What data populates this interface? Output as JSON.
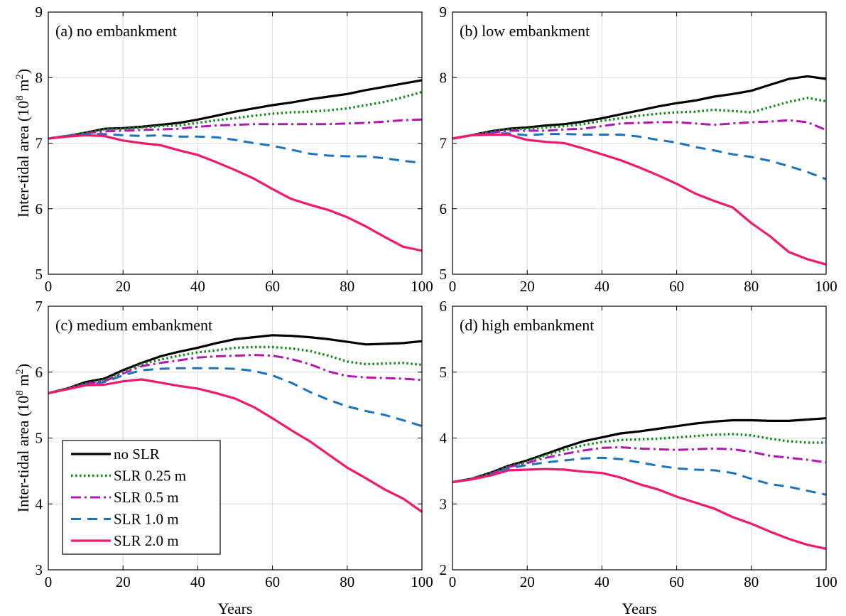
{
  "chart_data": [
    {
      "type": "line",
      "title": "(a)  no embankment",
      "xlabel": "",
      "ylabel": "Inter-tidal area (10^8 m^2)",
      "xlim": [
        0,
        100
      ],
      "ylim": [
        5,
        9
      ],
      "xticks": [
        "0",
        "20",
        "40",
        "60",
        "80",
        "100"
      ],
      "yticks": [
        "5",
        "6",
        "7",
        "8",
        "9"
      ],
      "grid": true,
      "series": [
        {
          "name": "no SLR",
          "x": [
            0,
            5,
            10,
            15,
            20,
            25,
            30,
            35,
            40,
            45,
            50,
            55,
            60,
            65,
            70,
            75,
            80,
            85,
            90,
            95,
            100
          ],
          "y": [
            7.07,
            7.11,
            7.16,
            7.22,
            7.23,
            7.25,
            7.28,
            7.31,
            7.36,
            7.42,
            7.48,
            7.53,
            7.58,
            7.62,
            7.67,
            7.71,
            7.75,
            7.81,
            7.86,
            7.91,
            7.96
          ]
        },
        {
          "name": "SLR 0.25 m",
          "x": [
            0,
            5,
            10,
            15,
            20,
            25,
            30,
            35,
            40,
            45,
            50,
            55,
            60,
            65,
            70,
            75,
            80,
            85,
            90,
            95,
            100
          ],
          "y": [
            7.07,
            7.11,
            7.16,
            7.21,
            7.22,
            7.24,
            7.26,
            7.27,
            7.31,
            7.35,
            7.38,
            7.42,
            7.45,
            7.47,
            7.48,
            7.5,
            7.53,
            7.58,
            7.63,
            7.7,
            7.78
          ]
        },
        {
          "name": "SLR 0.5 m",
          "x": [
            0,
            5,
            10,
            15,
            20,
            25,
            30,
            35,
            40,
            45,
            50,
            55,
            60,
            65,
            70,
            75,
            80,
            85,
            90,
            95,
            100
          ],
          "y": [
            7.07,
            7.11,
            7.15,
            7.18,
            7.19,
            7.2,
            7.21,
            7.22,
            7.25,
            7.27,
            7.28,
            7.29,
            7.29,
            7.29,
            7.29,
            7.29,
            7.3,
            7.31,
            7.33,
            7.35,
            7.36
          ]
        },
        {
          "name": "SLR 1.0 m",
          "x": [
            0,
            5,
            10,
            15,
            20,
            25,
            30,
            35,
            40,
            45,
            50,
            55,
            60,
            65,
            70,
            75,
            80,
            85,
            90,
            95,
            100
          ],
          "y": [
            7.07,
            7.11,
            7.14,
            7.14,
            7.12,
            7.11,
            7.12,
            7.1,
            7.1,
            7.09,
            7.05,
            7.0,
            6.96,
            6.9,
            6.84,
            6.81,
            6.8,
            6.8,
            6.77,
            6.73,
            6.7
          ]
        },
        {
          "name": "SLR 2.0 m",
          "x": [
            0,
            5,
            10,
            15,
            20,
            25,
            30,
            35,
            40,
            45,
            50,
            55,
            60,
            65,
            70,
            75,
            80,
            85,
            90,
            95,
            100
          ],
          "y": [
            7.07,
            7.1,
            7.12,
            7.11,
            7.04,
            7.0,
            6.97,
            6.89,
            6.82,
            6.71,
            6.59,
            6.46,
            6.3,
            6.15,
            6.06,
            5.98,
            5.87,
            5.73,
            5.57,
            5.42,
            5.36
          ]
        }
      ]
    },
    {
      "type": "line",
      "title": "(b)  low embankment",
      "xlabel": "",
      "ylabel": "",
      "xlim": [
        0,
        100
      ],
      "ylim": [
        5,
        9
      ],
      "xticks": [
        "0",
        "20",
        "40",
        "60",
        "80",
        "100"
      ],
      "yticks": [
        "5",
        "6",
        "7",
        "8",
        "9"
      ],
      "grid": true,
      "series": [
        {
          "name": "no SLR",
          "x": [
            0,
            5,
            10,
            15,
            20,
            25,
            30,
            35,
            40,
            45,
            50,
            55,
            60,
            65,
            70,
            75,
            80,
            85,
            90,
            95,
            100
          ],
          "y": [
            7.07,
            7.12,
            7.18,
            7.22,
            7.24,
            7.27,
            7.29,
            7.33,
            7.38,
            7.44,
            7.5,
            7.56,
            7.61,
            7.65,
            7.71,
            7.75,
            7.8,
            7.89,
            7.98,
            8.02,
            7.98
          ]
        },
        {
          "name": "SLR 0.25 m",
          "x": [
            0,
            5,
            10,
            15,
            20,
            25,
            30,
            35,
            40,
            45,
            50,
            55,
            60,
            65,
            70,
            75,
            80,
            85,
            90,
            95,
            100
          ],
          "y": [
            7.07,
            7.12,
            7.17,
            7.21,
            7.22,
            7.24,
            7.26,
            7.29,
            7.34,
            7.38,
            7.42,
            7.45,
            7.47,
            7.48,
            7.51,
            7.49,
            7.47,
            7.55,
            7.63,
            7.69,
            7.64
          ]
        },
        {
          "name": "SLR 0.5 m",
          "x": [
            0,
            5,
            10,
            15,
            20,
            25,
            30,
            35,
            40,
            45,
            50,
            55,
            60,
            65,
            70,
            75,
            80,
            85,
            90,
            95,
            100
          ],
          "y": [
            7.07,
            7.12,
            7.16,
            7.19,
            7.19,
            7.19,
            7.21,
            7.22,
            7.26,
            7.3,
            7.31,
            7.32,
            7.32,
            7.3,
            7.28,
            7.3,
            7.32,
            7.33,
            7.35,
            7.32,
            7.2
          ]
        },
        {
          "name": "SLR 1.0 m",
          "x": [
            0,
            5,
            10,
            15,
            20,
            25,
            30,
            35,
            40,
            45,
            50,
            55,
            60,
            65,
            70,
            75,
            80,
            85,
            90,
            95,
            100
          ],
          "y": [
            7.07,
            7.12,
            7.15,
            7.15,
            7.12,
            7.14,
            7.14,
            7.13,
            7.13,
            7.13,
            7.1,
            7.05,
            7.01,
            6.94,
            6.89,
            6.83,
            6.79,
            6.73,
            6.65,
            6.56,
            6.45
          ]
        },
        {
          "name": "SLR 2.0 m",
          "x": [
            0,
            5,
            10,
            15,
            20,
            25,
            30,
            35,
            40,
            45,
            50,
            55,
            60,
            65,
            70,
            75,
            80,
            85,
            90,
            95,
            100
          ],
          "y": [
            7.07,
            7.12,
            7.13,
            7.13,
            7.05,
            7.02,
            7.0,
            6.92,
            6.83,
            6.74,
            6.63,
            6.51,
            6.38,
            6.23,
            6.12,
            6.02,
            5.78,
            5.58,
            5.34,
            5.23,
            5.15
          ]
        }
      ]
    },
    {
      "type": "line",
      "title": "(c)  medium embankment",
      "xlabel": "Years",
      "ylabel": "Inter-tidal area (10^8 m^2)",
      "xlim": [
        0,
        100
      ],
      "ylim": [
        3,
        7
      ],
      "xticks": [
        "0",
        "20",
        "40",
        "60",
        "80",
        "100"
      ],
      "yticks": [
        "3",
        "4",
        "5",
        "6",
        "7"
      ],
      "grid": true,
      "series": [
        {
          "name": "no SLR",
          "x": [
            0,
            5,
            10,
            15,
            20,
            25,
            30,
            35,
            40,
            45,
            50,
            55,
            60,
            65,
            70,
            75,
            80,
            85,
            90,
            95,
            100
          ],
          "y": [
            5.68,
            5.75,
            5.85,
            5.9,
            6.03,
            6.14,
            6.24,
            6.31,
            6.37,
            6.44,
            6.5,
            6.53,
            6.56,
            6.55,
            6.53,
            6.5,
            6.46,
            6.42,
            6.43,
            6.44,
            6.47
          ]
        },
        {
          "name": "SLR 0.25 m",
          "x": [
            0,
            5,
            10,
            15,
            20,
            25,
            30,
            35,
            40,
            45,
            50,
            55,
            60,
            65,
            70,
            75,
            80,
            85,
            90,
            95,
            100
          ],
          "y": [
            5.68,
            5.75,
            5.83,
            5.88,
            6.0,
            6.12,
            6.19,
            6.25,
            6.3,
            6.33,
            6.37,
            6.38,
            6.38,
            6.36,
            6.32,
            6.25,
            6.16,
            6.12,
            6.13,
            6.14,
            6.11
          ]
        },
        {
          "name": "SLR 0.5 m",
          "x": [
            0,
            5,
            10,
            15,
            20,
            25,
            30,
            35,
            40,
            45,
            50,
            55,
            60,
            65,
            70,
            75,
            80,
            85,
            90,
            95,
            100
          ],
          "y": [
            5.68,
            5.74,
            5.82,
            5.86,
            5.98,
            6.09,
            6.14,
            6.18,
            6.22,
            6.24,
            6.25,
            6.26,
            6.25,
            6.2,
            6.12,
            6.01,
            5.94,
            5.92,
            5.91,
            5.9,
            5.88
          ]
        },
        {
          "name": "SLR 1.0 m",
          "x": [
            0,
            5,
            10,
            15,
            20,
            25,
            30,
            35,
            40,
            45,
            50,
            55,
            60,
            65,
            70,
            75,
            80,
            85,
            90,
            95,
            100
          ],
          "y": [
            5.68,
            5.74,
            5.81,
            5.85,
            5.95,
            6.03,
            6.05,
            6.06,
            6.06,
            6.06,
            6.05,
            6.02,
            5.95,
            5.84,
            5.7,
            5.58,
            5.48,
            5.41,
            5.35,
            5.27,
            5.18
          ]
        },
        {
          "name": "SLR 2.0 m",
          "x": [
            0,
            5,
            10,
            15,
            20,
            25,
            30,
            35,
            40,
            45,
            50,
            55,
            60,
            65,
            70,
            75,
            80,
            85,
            90,
            95,
            100
          ],
          "y": [
            5.68,
            5.74,
            5.8,
            5.81,
            5.86,
            5.89,
            5.84,
            5.79,
            5.75,
            5.68,
            5.6,
            5.47,
            5.3,
            5.12,
            4.95,
            4.75,
            4.55,
            4.39,
            4.22,
            4.08,
            3.88
          ]
        }
      ]
    },
    {
      "type": "line",
      "title": "(d)  high embankment",
      "xlabel": "Years",
      "ylabel": "",
      "xlim": [
        0,
        100
      ],
      "ylim": [
        2,
        6
      ],
      "xticks": [
        "0",
        "20",
        "40",
        "60",
        "80",
        "100"
      ],
      "yticks": [
        "2",
        "3",
        "4",
        "5",
        "6"
      ],
      "grid": true,
      "series": [
        {
          "name": "no SLR",
          "x": [
            0,
            5,
            10,
            15,
            20,
            25,
            30,
            35,
            40,
            45,
            50,
            55,
            60,
            65,
            70,
            75,
            80,
            85,
            90,
            95,
            100
          ],
          "y": [
            3.33,
            3.38,
            3.47,
            3.58,
            3.66,
            3.76,
            3.86,
            3.95,
            4.01,
            4.07,
            4.1,
            4.14,
            4.18,
            4.22,
            4.25,
            4.27,
            4.27,
            4.26,
            4.26,
            4.28,
            4.3
          ]
        },
        {
          "name": "SLR 0.25 m",
          "x": [
            0,
            5,
            10,
            15,
            20,
            25,
            30,
            35,
            40,
            45,
            50,
            55,
            60,
            65,
            70,
            75,
            80,
            85,
            90,
            95,
            100
          ],
          "y": [
            3.33,
            3.38,
            3.46,
            3.57,
            3.64,
            3.74,
            3.82,
            3.89,
            3.94,
            3.97,
            3.98,
            3.99,
            4.01,
            4.03,
            4.05,
            4.06,
            4.04,
            3.99,
            3.95,
            3.93,
            3.93
          ]
        },
        {
          "name": "SLR 0.5 m",
          "x": [
            0,
            5,
            10,
            15,
            20,
            25,
            30,
            35,
            40,
            45,
            50,
            55,
            60,
            65,
            70,
            75,
            80,
            85,
            90,
            95,
            100
          ],
          "y": [
            3.33,
            3.38,
            3.45,
            3.56,
            3.62,
            3.7,
            3.76,
            3.81,
            3.85,
            3.86,
            3.84,
            3.83,
            3.82,
            3.83,
            3.84,
            3.83,
            3.79,
            3.73,
            3.7,
            3.67,
            3.63
          ]
        },
        {
          "name": "SLR 1.0 m",
          "x": [
            0,
            5,
            10,
            15,
            20,
            25,
            30,
            35,
            40,
            45,
            50,
            55,
            60,
            65,
            70,
            75,
            80,
            85,
            90,
            95,
            100
          ],
          "y": [
            3.33,
            3.37,
            3.44,
            3.54,
            3.59,
            3.63,
            3.66,
            3.69,
            3.7,
            3.68,
            3.63,
            3.58,
            3.54,
            3.52,
            3.51,
            3.47,
            3.38,
            3.3,
            3.26,
            3.2,
            3.14
          ]
        },
        {
          "name": "SLR 2.0 m",
          "x": [
            0,
            5,
            10,
            15,
            20,
            25,
            30,
            35,
            40,
            45,
            50,
            55,
            60,
            65,
            70,
            75,
            80,
            85,
            90,
            95,
            100
          ],
          "y": [
            3.33,
            3.37,
            3.43,
            3.51,
            3.52,
            3.53,
            3.52,
            3.49,
            3.47,
            3.4,
            3.3,
            3.22,
            3.11,
            3.02,
            2.93,
            2.8,
            2.7,
            2.58,
            2.47,
            2.38,
            2.32
          ]
        }
      ]
    }
  ],
  "ylabel_text": "Inter-tidal area (10",
  "ylabel_exp1": "8",
  "ylabel_mid": " m",
  "ylabel_exp2": "2",
  "ylabel_end": ")",
  "legend": {
    "entries": [
      {
        "label": "no SLR",
        "color": "#000000",
        "dash": "solid"
      },
      {
        "label": "SLR 0.25 m",
        "color": "#138a1a",
        "dash": "dotted"
      },
      {
        "label": "SLR 0.5 m",
        "color": "#b018b0",
        "dash": "dashdot"
      },
      {
        "label": "SLR 1.0 m",
        "color": "#1b73bd",
        "dash": "dashed"
      },
      {
        "label": "SLR 2.0 m",
        "color": "#f0196b",
        "dash": "solid"
      }
    ]
  }
}
